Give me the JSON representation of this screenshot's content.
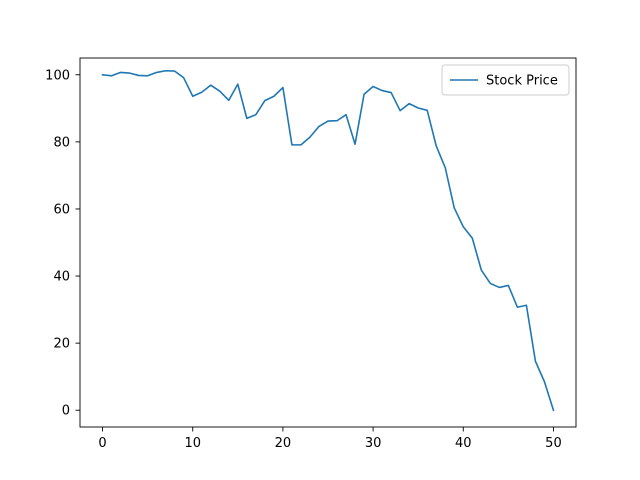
{
  "chart_data": {
    "type": "line",
    "title": "",
    "xlabel": "",
    "ylabel": "",
    "xlim": [
      -2.5,
      52.5
    ],
    "ylim": [
      -5,
      105
    ],
    "xticks": [
      0,
      10,
      20,
      30,
      40,
      50
    ],
    "yticks": [
      0,
      20,
      40,
      60,
      80,
      100
    ],
    "grid": false,
    "legend": {
      "position": "top-right",
      "entries": [
        "Stock Price"
      ]
    },
    "series": [
      {
        "name": "Stock Price",
        "color": "#1f77b4",
        "x": [
          0,
          1,
          2,
          3,
          4,
          5,
          6,
          7,
          8,
          9,
          10,
          11,
          12,
          13,
          14,
          15,
          16,
          17,
          18,
          19,
          20,
          21,
          22,
          23,
          24,
          25,
          26,
          27,
          28,
          29,
          30,
          31,
          32,
          33,
          34,
          35,
          36,
          37,
          38,
          39,
          40,
          41,
          42,
          43,
          44,
          45,
          46,
          47,
          48,
          49,
          50
        ],
        "y": [
          100.0,
          99.7,
          100.7,
          100.5,
          99.8,
          99.7,
          100.7,
          101.2,
          101.1,
          99.1,
          93.6,
          94.8,
          96.9,
          95.1,
          92.4,
          97.2,
          87.0,
          88.1,
          92.3,
          93.6,
          96.2,
          79.1,
          79.1,
          81.4,
          84.6,
          86.2,
          86.3,
          88.1,
          79.3,
          94.2,
          96.5,
          95.3,
          94.7,
          89.3,
          91.4,
          90.1,
          89.4,
          78.8,
          72.3,
          60.3,
          54.7,
          51.3,
          41.8,
          37.8,
          36.6,
          37.2,
          30.7,
          31.3,
          14.6,
          8.5,
          0.0
        ]
      }
    ]
  }
}
